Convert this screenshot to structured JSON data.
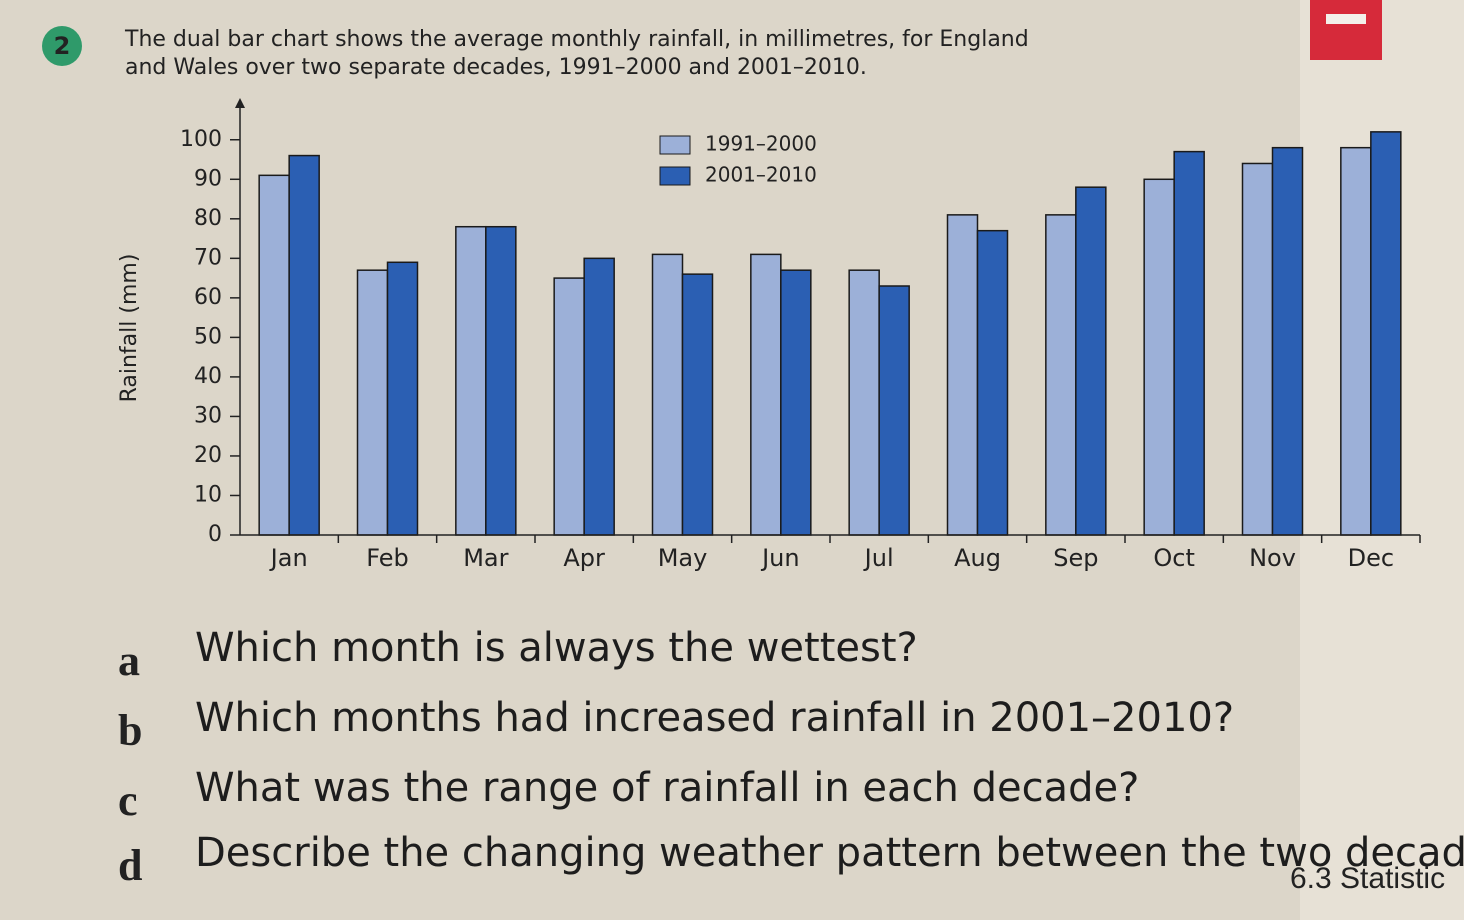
{
  "question_number": "2",
  "intro": [
    "The dual bar chart shows the average monthly rainfall, in millimetres, for England",
    "and Wales over two separate decades, 1991–2000 and 2001–2010."
  ],
  "chart_data": {
    "type": "bar",
    "ylabel": "Rainfall (mm)",
    "categories": [
      "Jan",
      "Feb",
      "Mar",
      "Apr",
      "May",
      "Jun",
      "Jul",
      "Aug",
      "Sep",
      "Oct",
      "Nov",
      "Dec"
    ],
    "series": [
      {
        "name": "1991–2000",
        "color": "#9cb0d8",
        "values": [
          91,
          67,
          78,
          65,
          71,
          71,
          67,
          81,
          81,
          90,
          94,
          98
        ]
      },
      {
        "name": "2001–2010",
        "color": "#2b5fb3",
        "values": [
          96,
          69,
          78,
          70,
          66,
          67,
          63,
          77,
          88,
          97,
          98,
          102
        ]
      }
    ],
    "ylim": [
      0,
      105
    ],
    "yticks": [
      0,
      10,
      20,
      30,
      40,
      50,
      60,
      70,
      80,
      90,
      100
    ],
    "legend": "top"
  },
  "questions": [
    {
      "letter": "a",
      "text": "Which month is always the wettest?"
    },
    {
      "letter": "b",
      "text": "Which months had increased rainfall in 2001–2010?"
    },
    {
      "letter": "c",
      "text": "What was the range of rainfall in each decade?"
    },
    {
      "letter": "d",
      "text": "Describe the changing weather pattern between the two decades."
    }
  ],
  "footer": "6.3 Statistic"
}
